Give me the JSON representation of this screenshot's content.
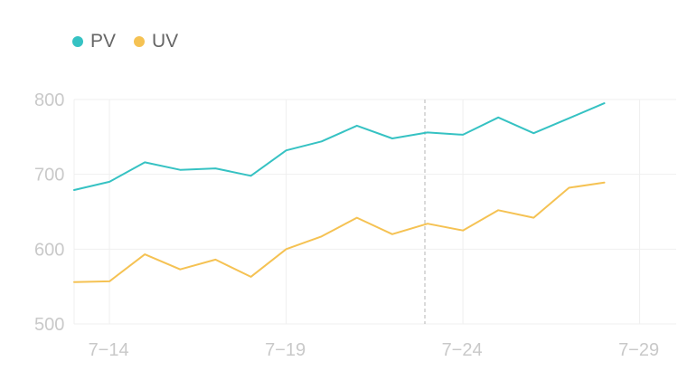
{
  "chart_data": {
    "type": "line",
    "title": "",
    "xlabel": "",
    "ylabel": "",
    "x": [
      "7-13",
      "7-14",
      "7-15",
      "7-16",
      "7-17",
      "7-18",
      "7-19",
      "7-20",
      "7-21",
      "7-22",
      "7-23",
      "7-24",
      "7-25",
      "7-26",
      "7-27",
      "7-28",
      "7-29",
      "7-30"
    ],
    "x_tick_labels": [
      "7−14",
      "7−19",
      "7−24",
      "7−29"
    ],
    "x_tick_indices": [
      1,
      6,
      11,
      16
    ],
    "ylim": [
      500,
      800
    ],
    "y_ticks": [
      500,
      600,
      700,
      800
    ],
    "y_tick_labels": [
      "500",
      "600",
      "700",
      "800"
    ],
    "grid": true,
    "legend_position": "top-left",
    "highlight_index": 10,
    "series": [
      {
        "name": "PV",
        "color": "#36C2C3",
        "values": [
          679,
          690,
          716,
          706,
          708,
          698,
          732,
          744,
          765,
          748,
          756,
          753,
          776,
          755,
          775,
          795,
          null,
          null
        ]
      },
      {
        "name": "UV",
        "color": "#F5C253",
        "values": [
          556,
          557,
          593,
          573,
          586,
          563,
          600,
          617,
          642,
          620,
          634,
          625,
          652,
          642,
          682,
          689,
          null,
          null
        ]
      }
    ]
  },
  "legend": {
    "items": [
      {
        "label": "PV",
        "color": "#36C2C3"
      },
      {
        "label": "UV",
        "color": "#F5C253"
      }
    ]
  },
  "colors": {
    "grid": "#efefef",
    "axis_text": "#c9c9c9",
    "highlight_line": "#b5b5b5"
  }
}
